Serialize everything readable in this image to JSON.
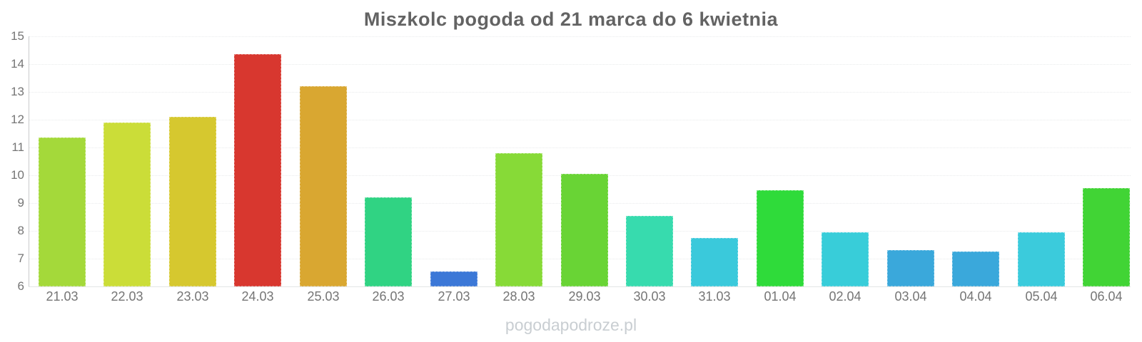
{
  "title": "Miszkolc pogoda od 21 marca do 6 kwietnia",
  "watermark": "pogodapodroze.pl",
  "chart_data": {
    "type": "bar",
    "title": "Miszkolc pogoda od 21 marca do 6 kwietnia",
    "categories": [
      "21.03",
      "22.03",
      "23.03",
      "24.03",
      "25.03",
      "26.03",
      "27.03",
      "28.03",
      "29.03",
      "30.03",
      "31.03",
      "01.04",
      "02.04",
      "03.04",
      "04.04",
      "05.04",
      "06.04"
    ],
    "values": [
      11.35,
      11.9,
      12.1,
      14.35,
      13.2,
      9.2,
      6.55,
      10.8,
      10.05,
      8.55,
      7.75,
      9.45,
      7.95,
      7.3,
      7.25,
      7.95,
      9.55
    ],
    "colors": [
      "#a4d93a",
      "#cbdd38",
      "#d6c82f",
      "#d8372f",
      "#d9a731",
      "#30d383",
      "#3c78d7",
      "#87da37",
      "#69d435",
      "#37dbae",
      "#3ac9db",
      "#2fdb3a",
      "#38cdd9",
      "#3aa8db",
      "#3aa8db",
      "#3bcbdc",
      "#41d435"
    ],
    "xlabel": "",
    "ylabel": "",
    "ylim": [
      6,
      15
    ],
    "yticks": [
      6,
      7,
      8,
      9,
      10,
      11,
      12,
      13,
      14,
      15
    ],
    "grid": true,
    "legend": "none"
  }
}
